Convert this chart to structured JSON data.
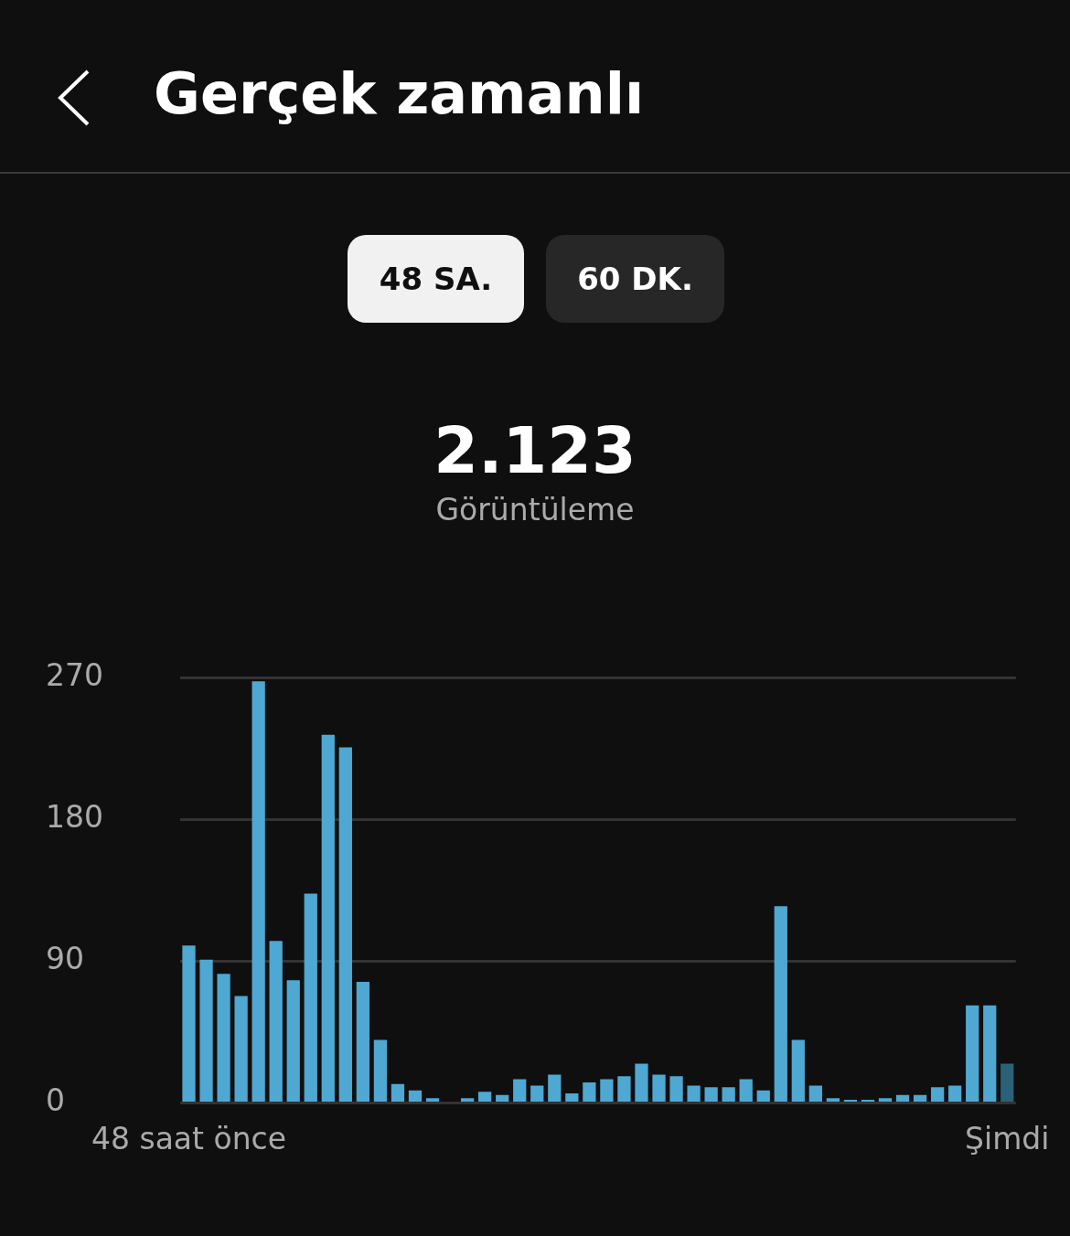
{
  "chart_data": {
    "type": "bar",
    "title": "Gerçek zamanlı",
    "annotations": [
      "48 SA.",
      "60 DK.",
      "2.123",
      "Görüntüleme"
    ],
    "categories": [
      "48 saat önce",
      null,
      null,
      null,
      null,
      null,
      null,
      null,
      null,
      null,
      null,
      null,
      null,
      null,
      null,
      null,
      null,
      null,
      null,
      null,
      null,
      null,
      null,
      null,
      null,
      null,
      null,
      null,
      null,
      null,
      null,
      null,
      null,
      null,
      null,
      null,
      null,
      null,
      null,
      null,
      null,
      null,
      null,
      null,
      null,
      null,
      null,
      "Şimdi"
    ],
    "values": [
      100,
      91,
      82,
      68,
      268,
      103,
      78,
      133,
      234,
      226,
      77,
      40,
      12,
      8,
      3,
      0,
      3,
      7,
      5,
      15,
      11,
      18,
      6,
      13,
      15,
      17,
      25,
      18,
      17,
      11,
      10,
      10,
      15,
      8,
      125,
      40,
      11,
      3,
      2,
      2,
      3,
      5,
      5,
      10,
      11,
      62,
      62,
      25
    ],
    "colors": [
      "#4ea8d2",
      "#4ea8d2",
      "#4ea8d2",
      "#4ea8d2",
      "#4ea8d2",
      "#4ea8d2",
      "#4ea8d2",
      "#4ea8d2",
      "#4ea8d2",
      "#4ea8d2",
      "#4ea8d2",
      "#4ea8d2",
      "#4ea8d2",
      "#4ea8d2",
      "#4ea8d2",
      "#4ea8d2",
      "#4ea8d2",
      "#4ea8d2",
      "#4ea8d2",
      "#4ea8d2",
      "#4ea8d2",
      "#4ea8d2",
      "#4ea8d2",
      "#4ea8d2",
      "#4ea8d2",
      "#4ea8d2",
      "#4ea8d2",
      "#4ea8d2",
      "#4ea8d2",
      "#4ea8d2",
      "#4ea8d2",
      "#4ea8d2",
      "#4ea8d2",
      "#4ea8d2",
      "#4ea8d2",
      "#4ea8d2",
      "#4ea8d2",
      "#4ea8d2",
      "#4ea8d2",
      "#4ea8d2",
      "#4ea8d2",
      "#4ea8d2",
      "#4ea8d2",
      "#4ea8d2",
      "#4ea8d2",
      "#4ea8d2",
      "#4ea8d2",
      "#2b6178"
    ],
    "ylim": [
      0,
      270
    ],
    "yticks": [
      0,
      90,
      180,
      270
    ],
    "grid": "y",
    "legend": false
  }
}
